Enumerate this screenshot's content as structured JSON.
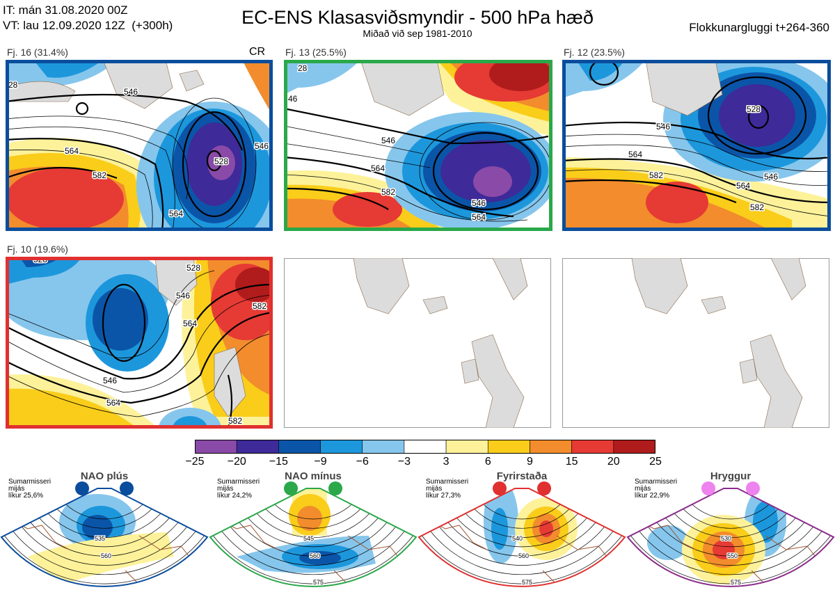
{
  "header": {
    "it_line": "IT: mán 31.08.2020 00Z",
    "vt_line": "VT: lau 12.09.2020 12Z  (+300h)",
    "title": "EC-ENS Klasasviðsmyndir - 500 hPa hæð",
    "subtitle": "Miðað við sep 1981-2010",
    "window": "Flokkunargluggi t+264-360"
  },
  "panels": [
    {
      "label": "Fj. 16 (31.4%)",
      "border": "#0a4d9c",
      "badge": "CR",
      "contours": [
        "546",
        "528",
        "564",
        "582",
        "564",
        "546",
        "28"
      ]
    },
    {
      "label": "Fj. 13 (25.5%)",
      "border": "#2aa84a",
      "badge": "",
      "contours": [
        "546",
        "564",
        "582",
        "546",
        "564",
        "46",
        "28"
      ]
    },
    {
      "label": "Fj. 12 (23.5%)",
      "border": "#0a4d9c",
      "badge": "",
      "contours": [
        "546",
        "528",
        "564",
        "582",
        "564",
        "546",
        "582"
      ]
    },
    {
      "label": "Fj. 10 (19.6%)",
      "border": "#e03030",
      "badge": "",
      "contours": [
        "528",
        "546",
        "564",
        "546",
        "564",
        "528",
        "582",
        "582"
      ]
    }
  ],
  "colorbar": {
    "ticks": [
      "−25",
      "−20",
      "−15",
      "−9",
      "−6",
      "−3",
      "3",
      "6",
      "9",
      "15",
      "20",
      "25"
    ],
    "colors": [
      "#8a4aa8",
      "#3e2a98",
      "#0b55a8",
      "#1d97dc",
      "#86c6ec",
      "#ffffff",
      "#fdf29a",
      "#f9cd1a",
      "#f28c2c",
      "#e63a34",
      "#b01c1c"
    ]
  },
  "regimes": [
    {
      "title": "NAO plús",
      "note": [
        "Sumarmisseri",
        "mijás",
        "líkur 25,6%"
      ],
      "dot_color": "#0a4d9c",
      "frame": "#0a4d9c",
      "labels": [
        "535",
        "560"
      ]
    },
    {
      "title": "NAO mínus",
      "note": [
        "Sumarmisseri",
        "mijás",
        "líkur 24,2%"
      ],
      "dot_color": "#2aa84a",
      "frame": "#2aa84a",
      "labels": [
        "545",
        "560",
        "575"
      ]
    },
    {
      "title": "Fyrirstaða",
      "note": [
        "Sumarmisseri",
        "mijás",
        "líkur 27,3%"
      ],
      "dot_color": "#e03030",
      "frame": "#e03030",
      "labels": [
        "540",
        "560",
        "575"
      ]
    },
    {
      "title": "Hryggur",
      "note": [
        "Sumarmisseri",
        "mijás",
        "líkur 22,9%"
      ],
      "dot_color": "#ee82ee",
      "frame": "#8b2a8b",
      "labels": [
        "530",
        "550",
        "575"
      ]
    }
  ]
}
